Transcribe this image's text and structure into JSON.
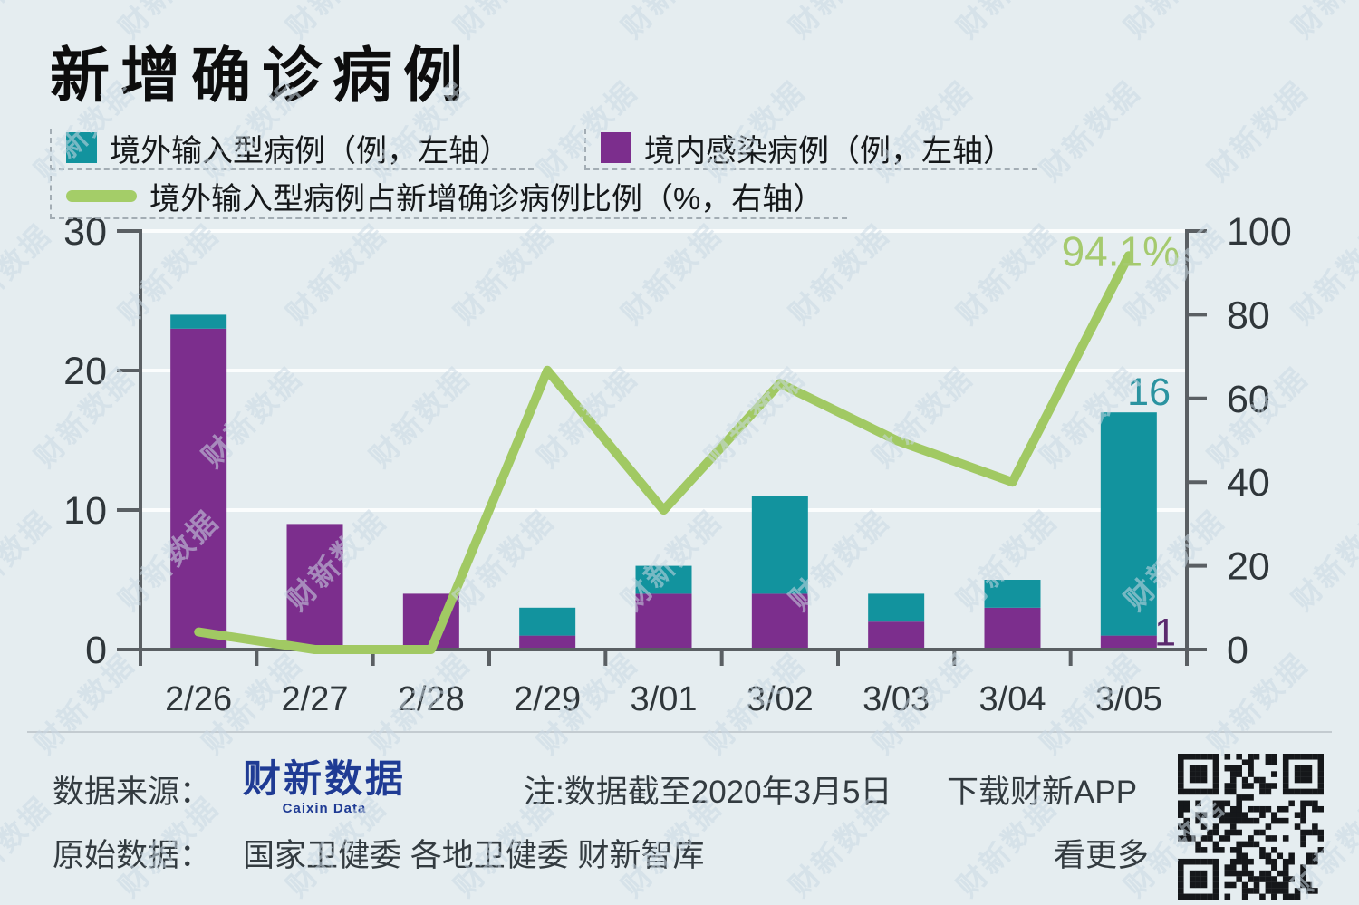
{
  "title": "新增确诊病例",
  "watermark": {
    "text": "财新数据"
  },
  "legend": [
    {
      "label": "境外输入型病例（例，左轴）",
      "color": "#12939e",
      "type": "square"
    },
    {
      "label": "境内感染病例（例，左轴）",
      "color": "#7c2e8d",
      "type": "square"
    },
    {
      "label": "境外输入型病例占新增确诊病例比例（%，右轴）",
      "color": "#a4cd68",
      "type": "line"
    }
  ],
  "chart_data": {
    "type": "bar",
    "subtype": "stacked-bars-with-line",
    "categories": [
      "2/26",
      "2/27",
      "2/28",
      "2/29",
      "3/01",
      "3/02",
      "3/03",
      "3/04",
      "3/05"
    ],
    "series": [
      {
        "name": "境外输入型病例（例，左轴）",
        "role": "imported",
        "type": "bar",
        "stack": "top",
        "axis": "left",
        "color": "#12939e",
        "values": [
          1,
          0,
          0,
          2,
          2,
          7,
          2,
          2,
          16
        ]
      },
      {
        "name": "境内感染病例（例，左轴）",
        "role": "domestic",
        "type": "bar",
        "stack": "bottom",
        "axis": "left",
        "color": "#7c2e8d",
        "values": [
          23,
          9,
          4,
          1,
          4,
          4,
          2,
          3,
          1
        ]
      },
      {
        "name": "境外输入型病例占新增确诊病例比例（%，右轴）",
        "role": "ratio",
        "type": "line",
        "axis": "right",
        "color": "#a1c963",
        "values": [
          4.2,
          0,
          0,
          66.7,
          33.3,
          63.6,
          50,
          40,
          94.1
        ]
      }
    ],
    "left_axis": {
      "ticks": [
        0,
        10,
        20,
        30
      ],
      "max": 30
    },
    "right_axis": {
      "ticks": [
        0,
        20,
        40,
        60,
        80,
        100
      ],
      "max": 100
    },
    "grid": "horizontal-white",
    "annotations": [
      {
        "text": "94.1%",
        "target": "ratio-last-point",
        "color": "#a5ca6e"
      },
      {
        "text": "16",
        "target": "imported-last-bar",
        "color": "#2b93a0"
      },
      {
        "text": "1",
        "target": "domestic-last-bar",
        "color": "#5b2a6e"
      }
    ]
  },
  "footer": {
    "source_label": "数据来源：",
    "source_logo": "财新数据",
    "source_logo_sub": "Caixin Data",
    "note": "注:数据截至2020年3月5日",
    "download": "下载财新APP",
    "raw_label": "原始数据：",
    "raw_value": "国家卫健委 各地卫健委 财新智库",
    "see_more": "看更多"
  }
}
